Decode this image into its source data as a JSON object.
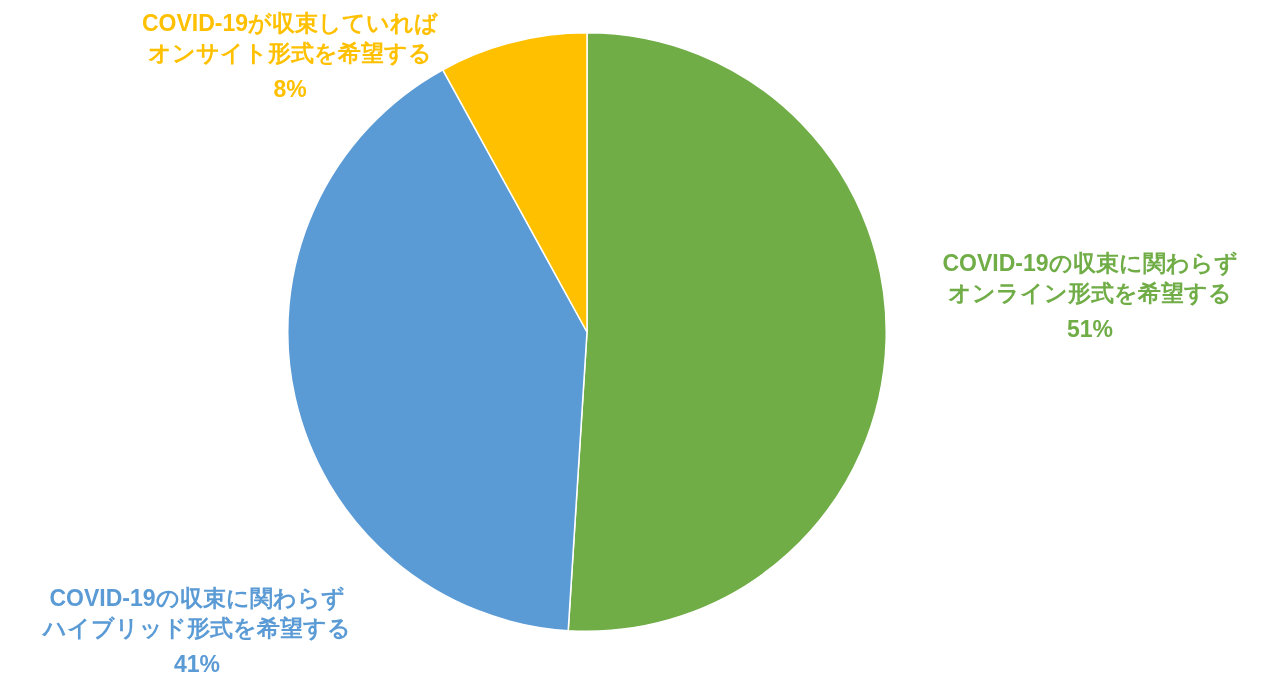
{
  "chart_data": {
    "type": "pie",
    "categories": [
      "COVID-19の収束に関わらずオンライン形式を希望する",
      "COVID-19の収束に関わらずハイブリッド形式を希望する",
      "COVID-19が収束していればオンサイト形式を希望する"
    ],
    "values": [
      51,
      41,
      8
    ],
    "colors": [
      "#70ad47",
      "#5b9bd5",
      "#ffc000"
    ],
    "value_labels": [
      "51%",
      "41%",
      "8%"
    ],
    "legend": false
  }
}
